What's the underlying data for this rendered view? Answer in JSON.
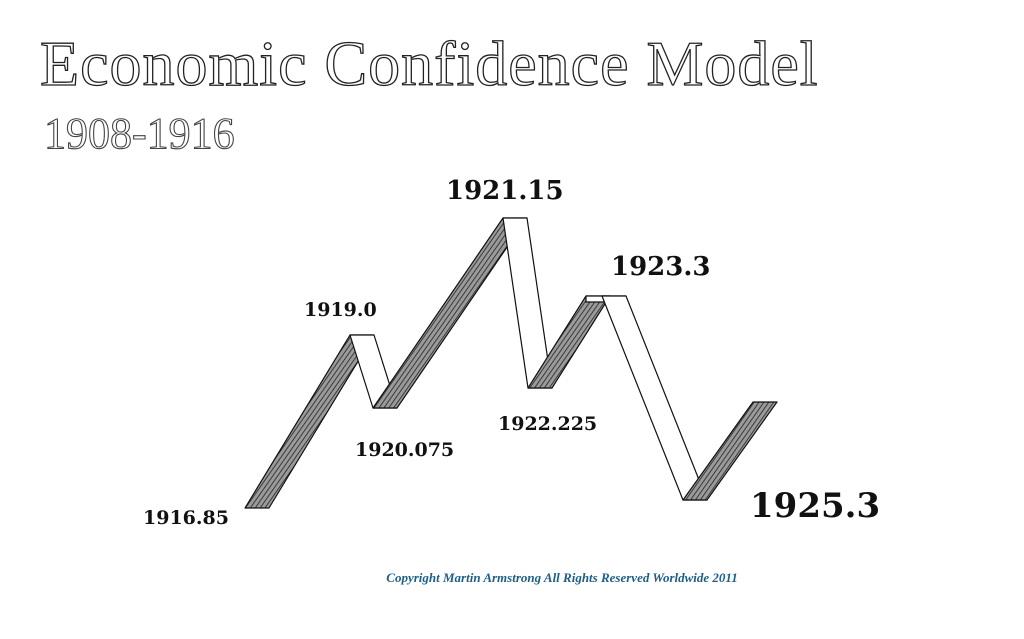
{
  "header": {
    "title": "Economic Confidence Model",
    "subtitle": "1908-1916"
  },
  "turning_points": [
    {
      "label": "1916.85"
    },
    {
      "label": "1919.0"
    },
    {
      "label": "1920.075"
    },
    {
      "label": "1921.15"
    },
    {
      "label": "1922.225"
    },
    {
      "label": "1923.3"
    },
    {
      "label": "1925.3"
    }
  ],
  "copyright": "Copyright Martin Armstrong All Rights Reserved Worldwide 2011"
}
